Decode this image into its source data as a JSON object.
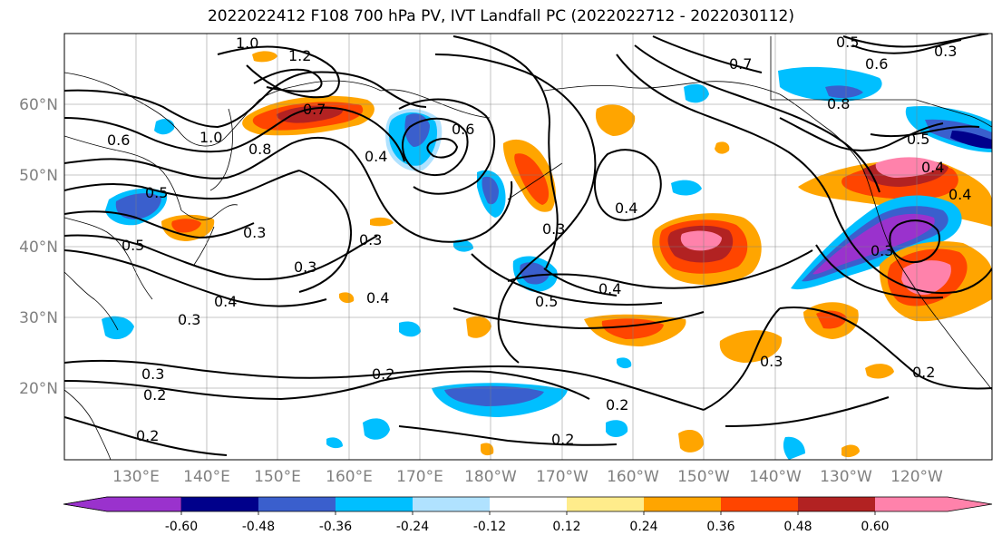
{
  "title": "2022022412 F108 700 hPa PV, IVT Landfall PC (2022022712 - 2022030112)",
  "latitude_labels": [
    "60°N",
    "50°N",
    "40°N",
    "30°N",
    "20°N"
  ],
  "longitude_labels": [
    "130°E",
    "140°E",
    "150°E",
    "160°E",
    "170°E",
    "180°W",
    "170°W",
    "160°W",
    "150°W",
    "140°W",
    "130°W",
    "120°W"
  ],
  "colorbar": {
    "colors": [
      "#9a32cd",
      "#00008b",
      "#3a5fcd",
      "#00bfff",
      "#b0e2ff",
      "#ffffff",
      "#ffec8b",
      "#ffa500",
      "#ff4500",
      "#b22222",
      "#ff82ab"
    ],
    "tick_labels": [
      "-0.60",
      "-0.48",
      "-0.36",
      "-0.24",
      "-0.12",
      "0.12",
      "0.24",
      "0.36",
      "0.48",
      "0.60"
    ]
  },
  "contour_labels": [
    "1.0",
    "1.2",
    "0.6",
    "1.0",
    "0.8",
    "0.7",
    "0.5",
    "0.4",
    "0.5",
    "0.3",
    "0.3",
    "0.3",
    "0.4",
    "0.3",
    "0.4",
    "0.4",
    "0.6",
    "0.7",
    "0.5",
    "0.6",
    "0.8",
    "0.5",
    "0.4",
    "0.4",
    "0.3",
    "0.5",
    "0.3",
    "0.3",
    "0.2",
    "0.2",
    "0.2",
    "0.2",
    "0.2",
    "0.2",
    "0.3",
    "0.4",
    "0.3"
  ]
}
